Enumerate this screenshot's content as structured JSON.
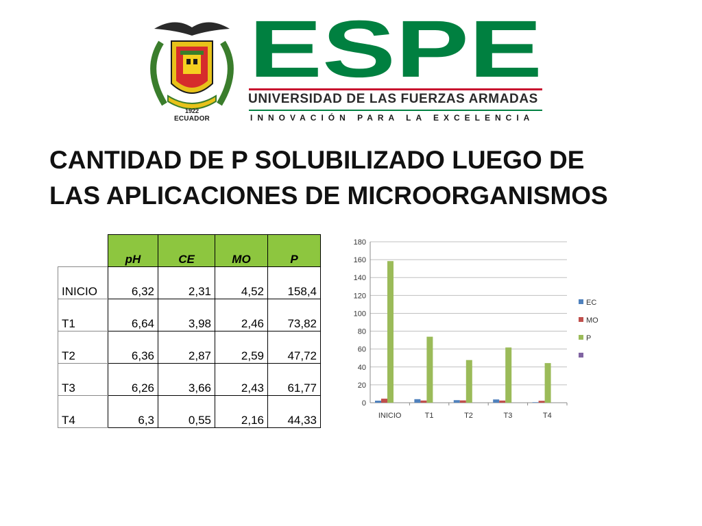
{
  "header": {
    "crest_year": "1922",
    "crest_country": "ECUADOR",
    "logo_word": "ESPE",
    "logo_subtitle": "UNIVERSIDAD DE LAS FUERZAS ARMADAS",
    "logo_tagline": "INNOVACIÓN PARA LA EXCELENCIA",
    "brand_green": "#008040",
    "brand_red": "#c8102e"
  },
  "title": {
    "line1": "CANTIDAD DE P SOLUBILIZADO LUEGO DE",
    "line2": "LAS APLICACIONES DE MICROORGANISMOS"
  },
  "table": {
    "headers": [
      "pH",
      "CE",
      "MO",
      "P"
    ],
    "rows": [
      {
        "label": "INICIO",
        "values": [
          "6,32",
          "2,31",
          "4,52",
          "158,4"
        ]
      },
      {
        "label": "T1",
        "values": [
          "6,64",
          "3,98",
          "2,46",
          "73,82"
        ]
      },
      {
        "label": "T2",
        "values": [
          "6,36",
          "2,87",
          "2,59",
          "47,72"
        ]
      },
      {
        "label": "T3",
        "values": [
          "6,26",
          "3,66",
          "2,43",
          "61,77"
        ]
      },
      {
        "label": "T4",
        "values": [
          "6,3",
          "0,55",
          "2,16",
          "44,33"
        ]
      }
    ]
  },
  "chart_data": {
    "type": "bar",
    "categories": [
      "INICIO",
      "T1",
      "T2",
      "T3",
      "T4"
    ],
    "series": [
      {
        "name": "EC",
        "color": "#4f81bd",
        "values": [
          2.31,
          3.98,
          2.87,
          3.66,
          0.55
        ]
      },
      {
        "name": "MO",
        "color": "#c0504d",
        "values": [
          4.52,
          2.46,
          2.59,
          2.43,
          2.16
        ]
      },
      {
        "name": "P",
        "color": "#9bbb59",
        "values": [
          158.4,
          73.82,
          47.72,
          61.77,
          44.33
        ]
      },
      {
        "name": "",
        "color": "#8064a2",
        "values": [
          0,
          0,
          0,
          0,
          0
        ]
      }
    ],
    "ylim": [
      0,
      180
    ],
    "yticks": [
      0,
      20,
      40,
      60,
      80,
      100,
      120,
      140,
      160,
      180
    ],
    "grid": true,
    "legend": "right"
  }
}
